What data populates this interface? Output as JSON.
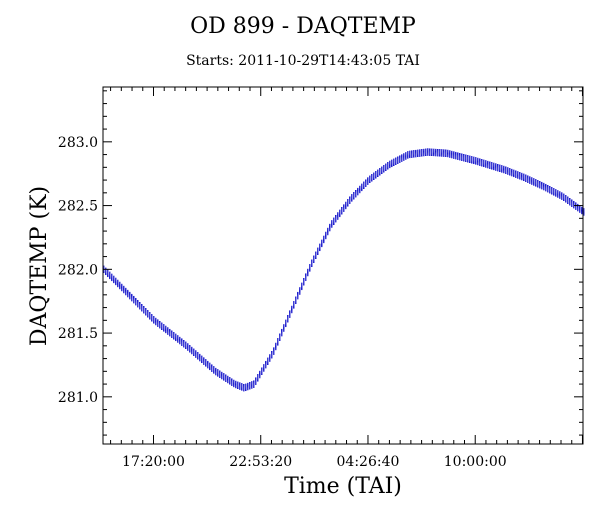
{
  "chart_data": {
    "type": "scatter",
    "title": "OD 899 - DAQTEMP",
    "subtitle": "Starts: 2011-10-29T14:43:05 TAI",
    "xlabel": "Time (TAI)",
    "ylabel": "DAQTEMP (K)",
    "x_unit": "time of day (TAI), starting 2011-10-29T14:43:05",
    "xlim": [
      "14:43:05",
      "15:35:00 (+1 day)"
    ],
    "ylim": [
      280.63,
      283.43
    ],
    "x_ticks": [
      "17:20:00",
      "22:53:20",
      "04:26:40",
      "10:00:00"
    ],
    "y_ticks": [
      "281.0",
      "281.5",
      "282.0",
      "282.5",
      "283.0"
    ],
    "grid": false,
    "point_color": "#1a1acc",
    "series": [
      {
        "x": [
          "14:43:05",
          "17:20:00",
          "19:00:00",
          "20:30:00",
          "21:30:00",
          "22:00:00",
          "22:30:00",
          "23:30:00",
          "00:30:00",
          "01:30:00",
          "02:30:00",
          "03:30:00",
          "04:26:40",
          "05:30:00",
          "06:30:00",
          "07:30:00",
          "08:30:00",
          "10:00:00",
          "11:30:00",
          "12:30:00",
          "13:30:00",
          "14:30:00",
          "15:35:00"
        ],
        "y": [
          282.0,
          281.6,
          281.4,
          281.2,
          281.1,
          281.07,
          281.1,
          281.35,
          281.7,
          282.05,
          282.35,
          282.55,
          282.7,
          282.82,
          282.9,
          282.92,
          282.91,
          282.85,
          282.78,
          282.72,
          282.65,
          282.57,
          282.45
        ],
        "spread": 0.05
      }
    ]
  }
}
